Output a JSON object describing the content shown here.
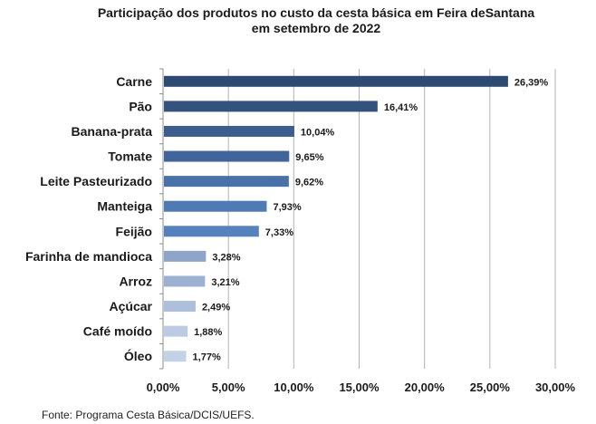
{
  "chart_data": {
    "type": "bar",
    "orientation": "horizontal",
    "title_line1": "Participação dos produtos no custo da cesta básica em Feira deSantana",
    "title_line2": "em setembro de 2022",
    "categories": [
      "Carne",
      "Pão",
      "Banana-prata",
      "Tomate",
      "Leite Pasteurizado",
      "Manteiga",
      "Feijão",
      "Farinha de mandioca",
      "Arroz",
      "Açúcar",
      "Café moído",
      "Óleo"
    ],
    "values": [
      26.39,
      16.41,
      10.04,
      9.65,
      9.62,
      7.93,
      7.33,
      3.28,
      3.21,
      2.49,
      1.88,
      1.77
    ],
    "value_labels": [
      "26,39%",
      "16,41%",
      "10,04%",
      "9,65%",
      "9,62%",
      "7,93%",
      "7,33%",
      "3,28%",
      "3,21%",
      "2,49%",
      "1,88%",
      "1,77%"
    ],
    "bar_colors": [
      "#2e4a72",
      "#34527e",
      "#3c5d8d",
      "#41649a",
      "#4872a8",
      "#4f7bb5",
      "#5581bd",
      "#8ea4c8",
      "#9cb1d2",
      "#aebfdb",
      "#bccbe3",
      "#c4d2e8"
    ],
    "xlim": [
      0,
      30
    ],
    "xticks": [
      "0,00%",
      "5,00%",
      "10,00%",
      "15,00%",
      "20,00%",
      "25,00%",
      "30,00%"
    ],
    "grid": true,
    "xlabel": "",
    "ylabel": ""
  },
  "source": "Fonte: Programa Cesta Básica/DCIS/UEFS."
}
